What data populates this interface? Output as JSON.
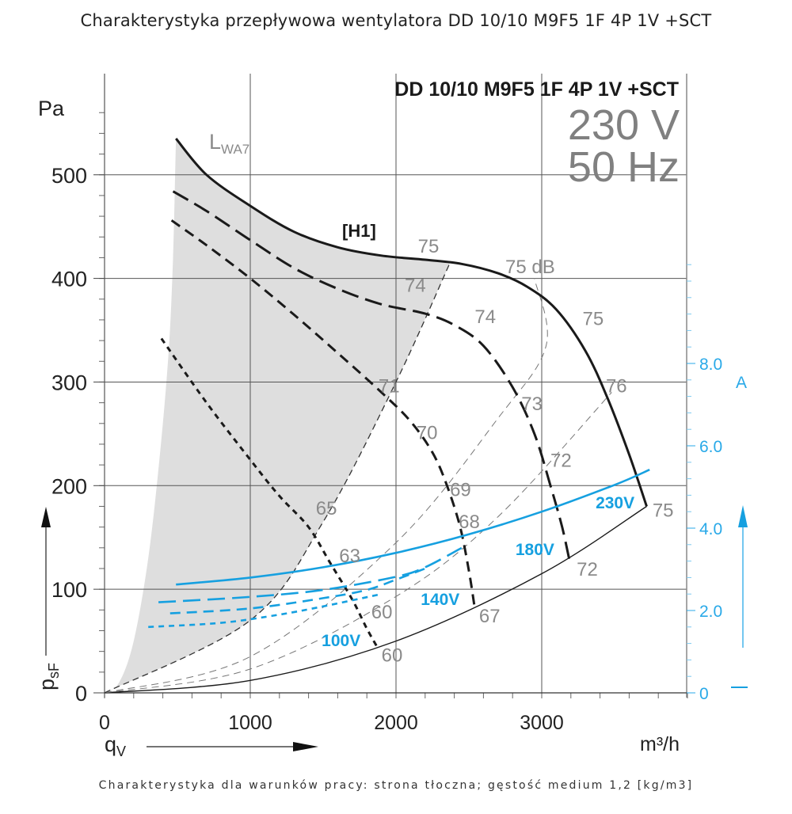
{
  "page_title": "Charakterystyka przepływowa wentylatora DD 10/10 M9F5 1F 4P 1V +SCT",
  "footer_note": "Charakterystyka dla warunków pracy: strona tłoczna; gęstość medium 1,2 [kg/m3]",
  "colors": {
    "curve": "#1a1a1a",
    "grid": "#555555",
    "shade": "#dedede",
    "db_text": "#8a8a8a",
    "current": "#16a0e0"
  },
  "chart_data": {
    "type": "line",
    "title": "DD 10/10 M9F5 1F 4P 1V +SCT",
    "subtitle": [
      "230 V",
      "50 Hz"
    ],
    "xlabel": "qV",
    "x_unit": "m³/h",
    "ylabel": "psF",
    "y_unit": "Pa",
    "y2_unit": "A",
    "xlim": [
      0,
      4000
    ],
    "ylim": [
      0,
      560
    ],
    "y2lim": [
      0,
      10.7
    ],
    "xticks": [
      0,
      1000,
      2000,
      3000
    ],
    "yticks": [
      0,
      100,
      200,
      300,
      400,
      500
    ],
    "y2ticks": [
      {
        "value": 0,
        "label": "0"
      },
      {
        "value": 2.0,
        "label": "2.0"
      },
      {
        "value": 4.0,
        "label": "4.0"
      },
      {
        "value": 6.0,
        "label": "6.0"
      },
      {
        "value": 8.0,
        "label": "8.0"
      }
    ],
    "grid": true,
    "shaded_region_label": "LWA7",
    "shaded_region_label_main": "L",
    "shaded_region_label_sub": "WA7",
    "pressure_series": [
      {
        "name": "230V",
        "tag": "[H1]",
        "style": "solid",
        "points": [
          [
            490,
            535
          ],
          [
            700,
            500
          ],
          [
            1000,
            470
          ],
          [
            1300,
            445
          ],
          [
            1600,
            430
          ],
          [
            1900,
            422
          ],
          [
            2200,
            418
          ],
          [
            2450,
            414
          ],
          [
            2700,
            405
          ],
          [
            2900,
            392
          ],
          [
            3100,
            370
          ],
          [
            3300,
            330
          ],
          [
            3450,
            285
          ],
          [
            3600,
            230
          ],
          [
            3720,
            180
          ]
        ]
      },
      {
        "name": "180V",
        "style": "long-dash",
        "points": [
          [
            470,
            484
          ],
          [
            700,
            465
          ],
          [
            1000,
            437
          ],
          [
            1300,
            410
          ],
          [
            1600,
            390
          ],
          [
            1900,
            375
          ],
          [
            2200,
            366
          ],
          [
            2400,
            355
          ],
          [
            2600,
            335
          ],
          [
            2800,
            295
          ],
          [
            2950,
            250
          ],
          [
            3060,
            200
          ],
          [
            3140,
            160
          ],
          [
            3190,
            128
          ]
        ]
      },
      {
        "name": "140V",
        "style": "dash",
        "points": [
          [
            460,
            456
          ],
          [
            700,
            432
          ],
          [
            1000,
            400
          ],
          [
            1300,
            365
          ],
          [
            1600,
            328
          ],
          [
            1900,
            290
          ],
          [
            2100,
            262
          ],
          [
            2250,
            232
          ],
          [
            2350,
            200
          ],
          [
            2440,
            160
          ],
          [
            2500,
            118
          ],
          [
            2540,
            82
          ]
        ]
      },
      {
        "name": "100V",
        "style": "dot",
        "points": [
          [
            390,
            342
          ],
          [
            700,
            280
          ],
          [
            1000,
            225
          ],
          [
            1200,
            190
          ],
          [
            1400,
            160
          ],
          [
            1550,
            125
          ],
          [
            1700,
            90
          ],
          [
            1800,
            62
          ],
          [
            1880,
            42
          ]
        ]
      }
    ],
    "system_curves": [
      {
        "style": "solid",
        "points": [
          [
            0,
            0
          ],
          [
            1000,
            12
          ],
          [
            2000,
            50
          ],
          [
            3000,
            115
          ],
          [
            3720,
            180
          ]
        ]
      },
      {
        "style": "thin-dash",
        "points": [
          [
            0,
            0
          ],
          [
            1000,
            23
          ],
          [
            2000,
            93
          ],
          [
            2700,
            170
          ],
          [
            3480,
            290
          ]
        ]
      },
      {
        "style": "thin-dash",
        "points": [
          [
            0,
            0
          ],
          [
            1000,
            35
          ],
          [
            2000,
            145
          ],
          [
            2700,
            265
          ],
          [
            3030,
            335
          ],
          [
            2950,
            400
          ]
        ]
      },
      {
        "style": "dash-boundary",
        "points": [
          [
            0,
            0
          ],
          [
            1000,
            70
          ],
          [
            1500,
            165
          ],
          [
            2000,
            300
          ],
          [
            2370,
            415
          ]
        ]
      }
    ],
    "shade_left_edge": [
      [
        0,
        0
      ],
      [
        100,
        10
      ],
      [
        200,
        50
      ],
      [
        300,
        130
      ],
      [
        380,
        230
      ],
      [
        440,
        330
      ],
      [
        470,
        420
      ],
      [
        490,
        535
      ]
    ],
    "current_series": [
      {
        "name": "230V",
        "style": "solid",
        "unit": "A",
        "points": [
          [
            490,
            2.63
          ],
          [
            1000,
            2.8
          ],
          [
            1500,
            3.05
          ],
          [
            2000,
            3.4
          ],
          [
            2500,
            3.85
          ],
          [
            3000,
            4.4
          ],
          [
            3500,
            5.05
          ],
          [
            3740,
            5.42
          ]
        ]
      },
      {
        "name": "180V",
        "style": "long-dash",
        "unit": "A",
        "points": [
          [
            370,
            2.2
          ],
          [
            1000,
            2.33
          ],
          [
            1500,
            2.5
          ],
          [
            2000,
            2.82
          ],
          [
            2200,
            3.05
          ],
          [
            2450,
            3.52
          ]
        ]
      },
      {
        "name": "140V",
        "style": "dash",
        "unit": "A",
        "points": [
          [
            450,
            1.93
          ],
          [
            1000,
            2.05
          ],
          [
            1500,
            2.3
          ],
          [
            1800,
            2.5
          ],
          [
            2000,
            2.75
          ],
          [
            2200,
            3.02
          ]
        ]
      },
      {
        "name": "100V",
        "style": "dot",
        "unit": "A",
        "points": [
          [
            300,
            1.6
          ],
          [
            800,
            1.7
          ],
          [
            1200,
            1.9
          ],
          [
            1500,
            2.1
          ],
          [
            1900,
            2.4
          ]
        ]
      }
    ],
    "voltage_labels": [
      "230V",
      "180V",
      "140V",
      "100V"
    ],
    "db_annotations": [
      {
        "text": "75",
        "x": 2150,
        "y": 425
      },
      {
        "text": "75 dB",
        "x": 2750,
        "y": 405
      },
      {
        "text": "75",
        "x": 3280,
        "y": 355
      },
      {
        "text": "74",
        "x": 2060,
        "y": 387
      },
      {
        "text": "74",
        "x": 2540,
        "y": 357
      },
      {
        "text": "76",
        "x": 3440,
        "y": 290
      },
      {
        "text": "71",
        "x": 1880,
        "y": 290
      },
      {
        "text": "73",
        "x": 2860,
        "y": 273
      },
      {
        "text": "70",
        "x": 2140,
        "y": 245
      },
      {
        "text": "72",
        "x": 3060,
        "y": 218
      },
      {
        "text": "69",
        "x": 2370,
        "y": 190
      },
      {
        "text": "65",
        "x": 1450,
        "y": 172
      },
      {
        "text": "68",
        "x": 2430,
        "y": 159
      },
      {
        "text": "63",
        "x": 1610,
        "y": 126
      },
      {
        "text": "75",
        "x": 3760,
        "y": 170
      },
      {
        "text": "72",
        "x": 3240,
        "y": 113
      },
      {
        "text": "60",
        "x": 1830,
        "y": 72
      },
      {
        "text": "67",
        "x": 2570,
        "y": 68
      },
      {
        "text": "60",
        "x": 1900,
        "y": 30
      }
    ],
    "voltage_annotations": [
      {
        "text": "230V",
        "x": 3370,
        "y": 178
      },
      {
        "text": "180V",
        "x": 2820,
        "y": 133
      },
      {
        "text": "140V",
        "x": 2170,
        "y": 85
      },
      {
        "text": "100V",
        "x": 1490,
        "y": 45
      }
    ]
  }
}
